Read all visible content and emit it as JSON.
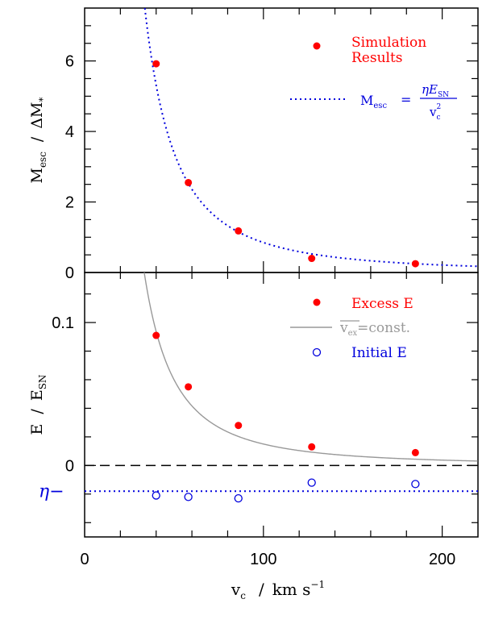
{
  "chart_data": [
    {
      "type": "scatter",
      "xlim": [
        0,
        220
      ],
      "ylim": [
        0,
        7.5
      ],
      "x_ticks": [
        "0",
        "100",
        "200"
      ],
      "y_ticks": [
        "0",
        "2",
        "4",
        "6"
      ],
      "ylabel_main": "M",
      "ylabel_sub": "esc",
      "ylabel_sep": "/",
      "ylabel_rest": "ΔM",
      "ylabel_star": "*",
      "series": [
        {
          "name_line1": "Simulation",
          "name_line2": "Results",
          "color": "#ff0000",
          "marker": "filled-circle",
          "x": [
            40,
            58,
            86,
            127,
            185
          ],
          "y": [
            5.92,
            2.55,
            1.18,
            0.4,
            0.25
          ]
        },
        {
          "name_lhs": "M",
          "name_lhs_sub": "esc",
          "name_eq": "=",
          "name_num": "ηE",
          "name_num_sub": "SN",
          "name_den": "v",
          "name_den_sub": "c",
          "name_den_sup": "2",
          "color": "#0000dd",
          "style": "dotted",
          "curve": "y = 8500 / x^2"
        }
      ]
    },
    {
      "type": "scatter",
      "xlim": [
        0,
        220
      ],
      "ylim": [
        -0.05,
        0.135
      ],
      "x_ticks": [
        "0",
        "100",
        "200"
      ],
      "y_ticks": [
        "0",
        "0.1"
      ],
      "eta_label": "η",
      "eta_dash": "−",
      "eta_value": -0.018,
      "ylabel_main": "E",
      "ylabel_sep": "/",
      "ylabel_rest": "E",
      "ylabel_sub": "SN",
      "xlabel_main": "v",
      "xlabel_sub": "c",
      "xlabel_sep": "/",
      "xlabel_units": "km s",
      "xlabel_exp": "−1",
      "series": [
        {
          "name": "Excess E",
          "color": "#ff0000",
          "marker": "filled-circle",
          "x": [
            40,
            58,
            86,
            127,
            185
          ],
          "y": [
            0.091,
            0.055,
            0.028,
            0.013,
            0.009
          ]
        },
        {
          "name_symbol": "v",
          "name_sub": "ex",
          "name_rest": "=const.",
          "color": "#999999",
          "style": "solid",
          "curve": "y = 150 / x^2"
        },
        {
          "name": "Initial E",
          "color": "#0000dd",
          "marker": "open-circle",
          "x": [
            40,
            58,
            86,
            127,
            185
          ],
          "y": [
            -0.021,
            -0.022,
            -0.023,
            -0.012,
            -0.013
          ]
        },
        {
          "name": "",
          "color": "#000000",
          "style": "dashed",
          "value": 0
        }
      ]
    }
  ]
}
